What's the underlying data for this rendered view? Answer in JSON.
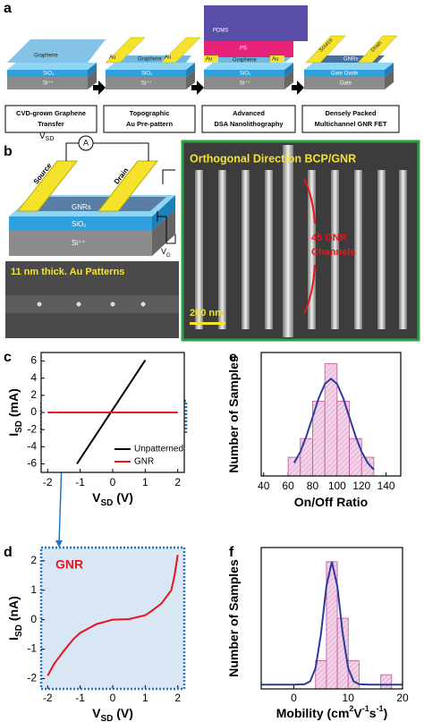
{
  "panel_labels": [
    "a",
    "b",
    "c",
    "d",
    "e",
    "f"
  ],
  "panel_a": {
    "steps": [
      [
        "CVD-grown Graphene",
        "Transfer"
      ],
      [
        "Topographic",
        "Au Pre-pattern"
      ],
      [
        "Advanced",
        "DSA Nanolithography"
      ],
      [
        "Densely Packed",
        "Multichannel GNR FET"
      ]
    ],
    "layers": [
      [
        "Graphene",
        "SiO₂",
        "Si⁺⁺"
      ],
      [
        "Au",
        "Graphene",
        "Au",
        "SiO₂",
        "Si⁺⁺"
      ],
      [
        "PDMS",
        "PS",
        "Au",
        "Graphene",
        "Au",
        "SiO₂",
        "Si⁺⁺"
      ],
      [
        "Source",
        "Drain",
        "GNRs",
        "Gate Oxide",
        "Gate"
      ]
    ]
  },
  "panel_b": {
    "vsd": {
      "main": "V",
      "sub": "SD"
    },
    "ammeter": "A",
    "vg": {
      "main": "V",
      "sub": "G"
    },
    "source": "Source",
    "drain": "Drain",
    "gnrs": "GNRs",
    "sio2": "SiO₂",
    "si": "Si⁺⁺",
    "sem_small_title": "11 nm thick. Au Patterns",
    "sem_title": "Orthogonal Direction BCP/GNR",
    "channels": [
      "45 GNR",
      "Channels"
    ],
    "scale_bar": "200 nm"
  },
  "chart_data": [
    {
      "type": "line",
      "xlim": [
        -2.2,
        2.2
      ],
      "ylim": [
        -7,
        7
      ],
      "xticks": [
        -2,
        -1,
        0,
        1,
        2
      ],
      "yticks": [
        -6,
        -4,
        -2,
        0,
        2,
        4,
        6
      ],
      "xlabel": [
        {
          "text": "V"
        },
        {
          "text": "SD",
          "sub": true
        },
        {
          "text": " (V)"
        }
      ],
      "ylabel": [
        {
          "text": "I"
        },
        {
          "text": "SD",
          "sub": true
        },
        {
          "text": " (mA)"
        }
      ],
      "legend": "lower right",
      "series": [
        {
          "name": "Unpatterned",
          "color": "#000000",
          "x": [
            -1.1,
            1
          ],
          "values": [
            -6,
            6.1
          ]
        },
        {
          "name": "GNR",
          "color": "#e8141b",
          "x": [
            -2,
            2
          ],
          "values": [
            0,
            0
          ]
        }
      ]
    },
    {
      "type": "line",
      "xlim": [
        -2.2,
        2.2
      ],
      "ylim": [
        -2.35,
        2.45
      ],
      "xticks": [
        -2,
        -1,
        0,
        1,
        2
      ],
      "yticks": [
        -2,
        -1,
        0,
        1,
        2
      ],
      "background": "#d9e7f5",
      "xlabel": [
        {
          "text": "V"
        },
        {
          "text": "SD",
          "sub": true
        },
        {
          "text": " (V)"
        }
      ],
      "ylabel": [
        {
          "text": "I"
        },
        {
          "text": "SD",
          "sub": true
        },
        {
          "text": " (nA)"
        }
      ],
      "annotation": "GNR",
      "series": [
        {
          "color": "#e8141b",
          "x": [
            -2,
            -1.8,
            -1.5,
            -1.2,
            -1,
            -0.5,
            0,
            0.5,
            1,
            1.2,
            1.5,
            1.8,
            1.9,
            2
          ],
          "values": [
            -1.9,
            -1.5,
            -1.05,
            -0.65,
            -0.45,
            -0.15,
            0,
            0.02,
            0.15,
            0.3,
            0.55,
            1.0,
            1.5,
            2.2
          ]
        }
      ]
    },
    {
      "type": "histogram",
      "xlim": [
        38,
        152
      ],
      "ylim": [
        0,
        6.6
      ],
      "xticks": [
        40,
        60,
        80,
        100,
        120,
        140
      ],
      "xlabel": [
        {
          "text": "On/Off Ratio"
        }
      ],
      "ylabel": [
        {
          "text": "Number of Samples"
        }
      ],
      "bins": [
        60,
        70,
        80,
        90,
        100,
        110,
        120,
        130
      ],
      "values": [
        1,
        2,
        4,
        6,
        4,
        2,
        1
      ],
      "color": "#f0c4e0",
      "edge_color": "#c0509a",
      "fit_x": [
        65,
        70,
        75,
        80,
        85,
        90,
        95,
        100,
        105,
        110,
        115,
        120,
        125,
        130
      ],
      "fit_values": [
        0.7,
        1.3,
        2.14,
        3.15,
        4.16,
        4.92,
        5.2,
        4.92,
        4.16,
        3.15,
        2.14,
        1.3,
        0.7,
        0.34
      ],
      "fit_color": "#2b3a9e"
    },
    {
      "type": "histogram",
      "xlim": [
        -6,
        20
      ],
      "ylim": [
        0,
        10
      ],
      "xticks": [
        0,
        10,
        20
      ],
      "xlabel": [
        {
          "text": "Mobility (cm"
        },
        {
          "text": "2",
          "sup": true
        },
        {
          "text": "V"
        },
        {
          "text": "-1",
          "sup": true
        },
        {
          "text": "s"
        },
        {
          "text": "-1",
          "sup": true
        },
        {
          "text": ")"
        }
      ],
      "ylabel": [
        {
          "text": "Number of Samples"
        }
      ],
      "bins": [
        4,
        6,
        8,
        10,
        12,
        14,
        16,
        18
      ],
      "values": [
        2,
        9,
        5,
        2,
        0,
        0,
        1
      ],
      "color": "#f0c4e0",
      "edge_color": "#c0509a",
      "fit_x": [
        -6,
        0,
        2,
        3,
        4,
        5,
        6,
        7,
        8,
        9,
        10,
        11,
        12,
        14,
        20
      ],
      "fit_values": [
        0.3,
        0.3,
        0.33,
        0.54,
        1.48,
        3.88,
        7.27,
        9,
        7.27,
        3.88,
        1.48,
        0.54,
        0.33,
        0.3,
        0.3
      ],
      "fit_color": "#2b3a9e"
    }
  ]
}
